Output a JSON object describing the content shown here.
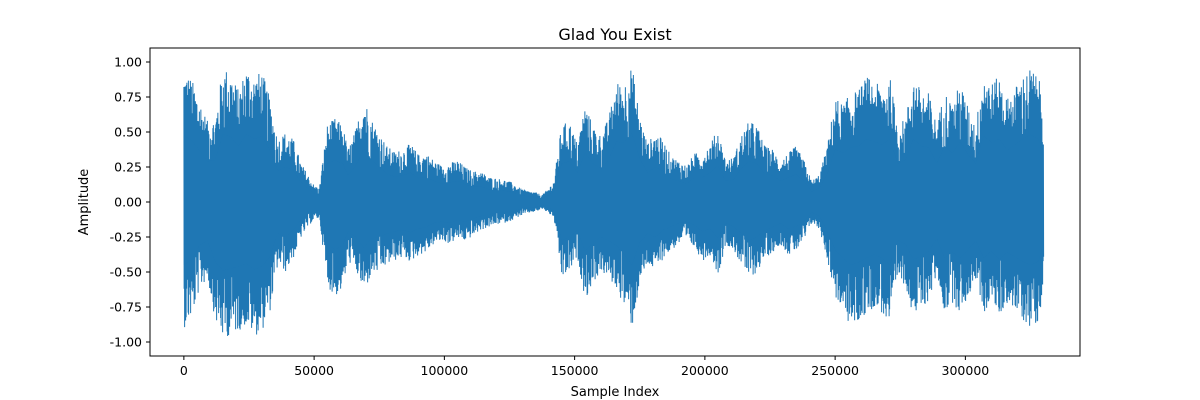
{
  "chart_data": {
    "type": "line",
    "title": "Glad You Exist",
    "xlabel": "Sample Index",
    "ylabel": "Amplitude",
    "xlim": [
      -13000,
      344000
    ],
    "ylim": [
      -1.1,
      1.1
    ],
    "xticks": [
      0,
      50000,
      100000,
      150000,
      200000,
      250000,
      300000
    ],
    "yticks": [
      -1.0,
      -0.75,
      -0.5,
      -0.25,
      0.0,
      0.25,
      0.5,
      0.75,
      1.0
    ],
    "grid": false,
    "series": [
      {
        "color": "#1f77b4",
        "envelope": {
          "x": [
            0,
            3000,
            6000,
            9000,
            12000,
            15000,
            18000,
            21000,
            24000,
            27000,
            30000,
            33000,
            36000,
            39000,
            42000,
            45000,
            47500,
            50000,
            52000,
            55000,
            58000,
            61000,
            63000,
            66000,
            69000,
            72000,
            75000,
            78000,
            81000,
            84000,
            87000,
            90000,
            93000,
            96000,
            99000,
            102000,
            105000,
            108000,
            111000,
            114000,
            117000,
            120000,
            123000,
            126000,
            129000,
            132000,
            135000,
            137500,
            140000,
            142000,
            145000,
            148000,
            151000,
            154000,
            157000,
            160000,
            163000,
            166000,
            169000,
            172000,
            175000,
            178000,
            181000,
            184000,
            187000,
            190000,
            193000,
            196000,
            199000,
            202000,
            205000,
            208000,
            211000,
            214000,
            217000,
            220000,
            223000,
            226000,
            229000,
            232000,
            235000,
            238000,
            241000,
            244000,
            247000,
            250000,
            253000,
            256000,
            259000,
            262000,
            265000,
            268000,
            271000,
            274000,
            277000,
            280000,
            283000,
            286000,
            289000,
            292000,
            295000,
            298000,
            301000,
            304000,
            307000,
            310000,
            313000,
            316000,
            319000,
            322000,
            325000,
            328000,
            330000
          ],
          "upper": [
            0.95,
            0.88,
            0.74,
            0.58,
            0.6,
            0.97,
            0.93,
            0.8,
            0.97,
            0.9,
            0.94,
            0.74,
            0.45,
            0.5,
            0.45,
            0.28,
            0.2,
            0.12,
            0.1,
            0.55,
            0.6,
            0.55,
            0.38,
            0.52,
            0.76,
            0.6,
            0.5,
            0.4,
            0.36,
            0.38,
            0.42,
            0.34,
            0.35,
            0.3,
            0.26,
            0.28,
            0.3,
            0.25,
            0.22,
            0.22,
            0.18,
            0.17,
            0.16,
            0.14,
            0.1,
            0.08,
            0.07,
            0.05,
            0.1,
            0.15,
            0.55,
            0.58,
            0.42,
            0.7,
            0.55,
            0.48,
            0.6,
            0.86,
            0.85,
            0.98,
            0.62,
            0.42,
            0.5,
            0.44,
            0.33,
            0.3,
            0.26,
            0.35,
            0.35,
            0.42,
            0.52,
            0.3,
            0.32,
            0.48,
            0.58,
            0.55,
            0.4,
            0.38,
            0.3,
            0.35,
            0.4,
            0.3,
            0.15,
            0.2,
            0.4,
            0.75,
            0.7,
            0.78,
            0.8,
            0.9,
            0.86,
            0.82,
            0.9,
            0.55,
            0.6,
            0.9,
            0.8,
            0.78,
            0.55,
            0.8,
            0.7,
            0.86,
            0.68,
            0.55,
            0.95,
            0.85,
            0.9,
            0.74,
            0.82,
            0.9,
            0.96,
            0.9,
            0.72
          ],
          "lower": [
            -0.9,
            -0.82,
            -0.62,
            -0.55,
            -0.85,
            -0.98,
            -0.95,
            -0.92,
            -0.88,
            -0.96,
            -0.92,
            -0.78,
            -0.45,
            -0.5,
            -0.4,
            -0.25,
            -0.18,
            -0.12,
            -0.12,
            -0.6,
            -0.68,
            -0.62,
            -0.42,
            -0.5,
            -0.65,
            -0.52,
            -0.5,
            -0.45,
            -0.42,
            -0.4,
            -0.43,
            -0.38,
            -0.36,
            -0.3,
            -0.28,
            -0.3,
            -0.26,
            -0.28,
            -0.24,
            -0.2,
            -0.18,
            -0.16,
            -0.15,
            -0.13,
            -0.1,
            -0.08,
            -0.07,
            -0.05,
            -0.08,
            -0.12,
            -0.55,
            -0.5,
            -0.4,
            -0.7,
            -0.58,
            -0.5,
            -0.55,
            -0.62,
            -0.75,
            -0.9,
            -0.58,
            -0.45,
            -0.5,
            -0.4,
            -0.35,
            -0.3,
            -0.28,
            -0.33,
            -0.42,
            -0.38,
            -0.52,
            -0.3,
            -0.35,
            -0.45,
            -0.55,
            -0.5,
            -0.4,
            -0.36,
            -0.3,
            -0.38,
            -0.35,
            -0.28,
            -0.15,
            -0.2,
            -0.42,
            -0.68,
            -0.8,
            -0.9,
            -0.86,
            -0.8,
            -0.75,
            -0.8,
            -0.9,
            -0.55,
            -0.6,
            -0.82,
            -0.78,
            -0.7,
            -0.52,
            -0.8,
            -0.72,
            -0.8,
            -0.68,
            -0.55,
            -0.8,
            -0.7,
            -0.82,
            -0.72,
            -0.78,
            -0.85,
            -0.9,
            -0.85,
            -0.6
          ]
        }
      }
    ]
  }
}
